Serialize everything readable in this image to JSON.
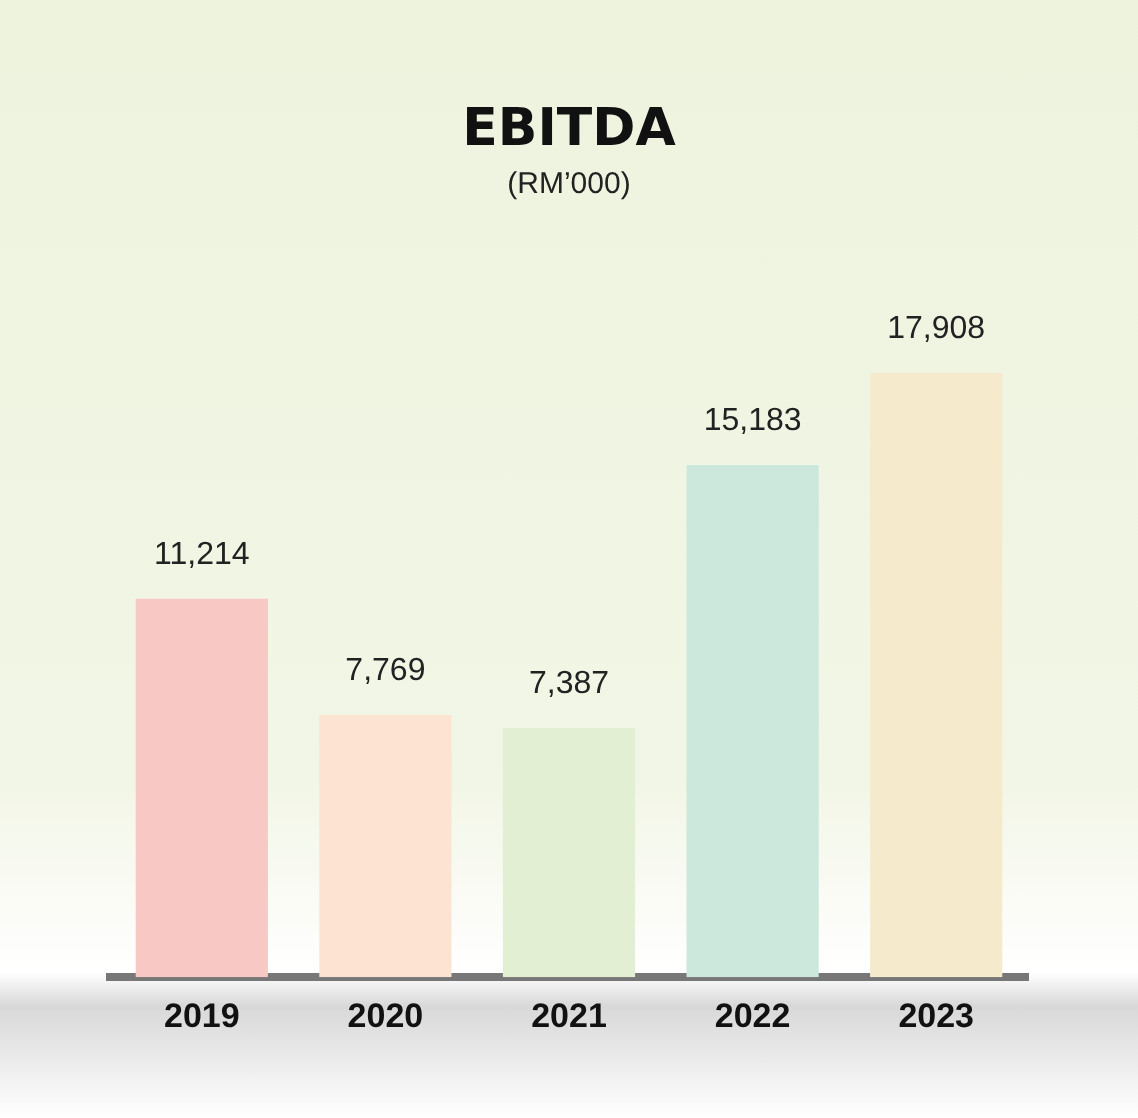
{
  "chart_data": {
    "type": "bar",
    "title": "EBITDA",
    "subtitle": "(RM’000)",
    "categories": [
      "2019",
      "2020",
      "2021",
      "2022",
      "2023"
    ],
    "values": [
      11214,
      7769,
      7387,
      15183,
      17908
    ],
    "colors": [
      "#f8c8c4",
      "#fde3d2",
      "#e2efd2",
      "#cce8dc",
      "#f5eacc"
    ],
    "value_labels": [
      "11,214",
      "7,769",
      "7,387",
      "15,183",
      "17,908"
    ],
    "grid": false,
    "legend": false
  }
}
